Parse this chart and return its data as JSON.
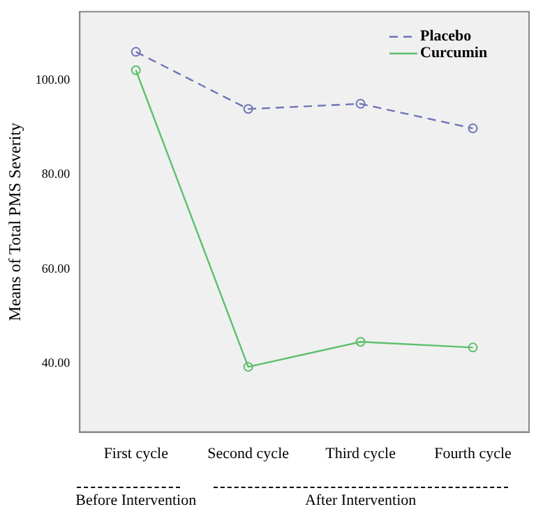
{
  "chart_data": {
    "type": "line",
    "ylabel": "Means of Total PMS Severity",
    "categories": [
      "First cycle",
      "Second cycle",
      "Third cycle",
      "Fourth cycle"
    ],
    "series": [
      {
        "name": "Placebo",
        "color": "#6f74b8",
        "values": [
          106.0,
          93.9,
          95.0,
          89.8
        ],
        "line_style": "dashed"
      },
      {
        "name": "Curcumin",
        "color": "#5cbf6c",
        "values": [
          102.1,
          39.3,
          44.6,
          43.4
        ],
        "line_style": "solid"
      }
    ],
    "ylim": [
      25.5,
      114.5
    ],
    "yticks": [
      {
        "value": 40,
        "label": "40.00"
      },
      {
        "value": 60,
        "label": "60.00"
      },
      {
        "value": 80,
        "label": "80.00"
      },
      {
        "value": 100,
        "label": "100.00"
      }
    ],
    "marker": "circle",
    "grid": false,
    "legend": "top right",
    "annotations": [
      "Before Intervention",
      "After Intervention"
    ]
  }
}
